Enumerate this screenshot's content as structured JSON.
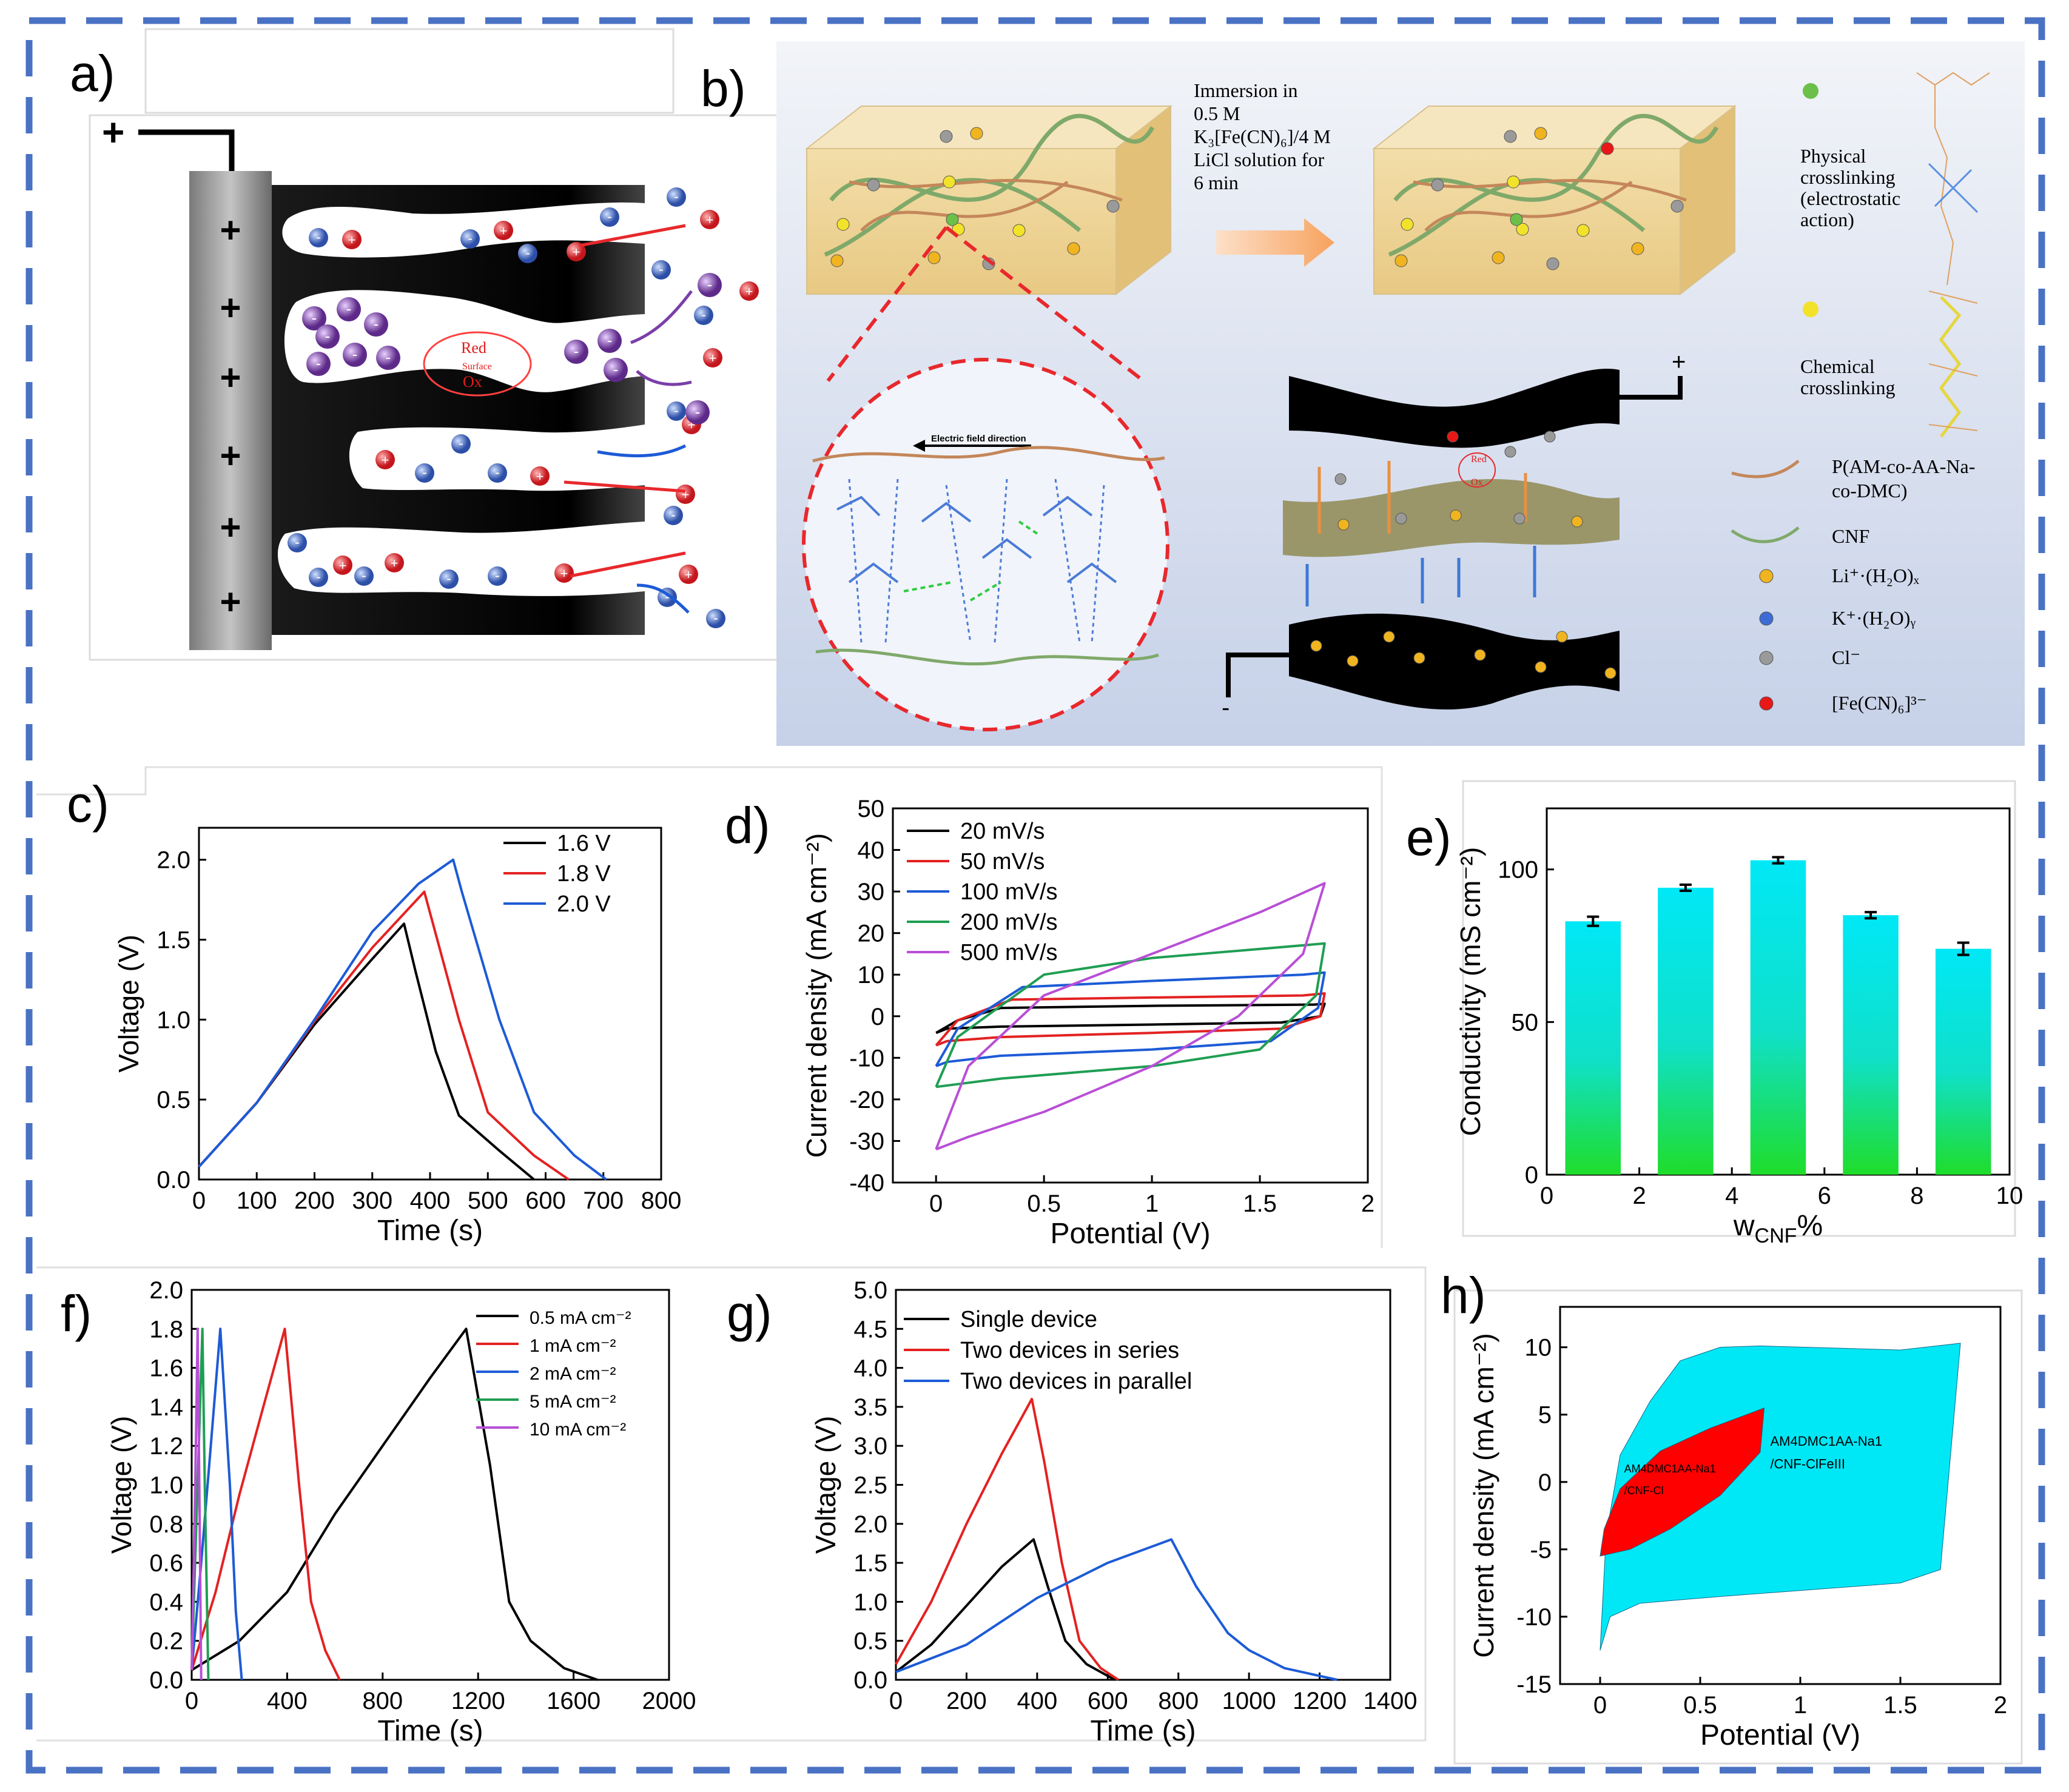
{
  "colors": {
    "frame": "#4a72c4",
    "ion_red": "#d8262c",
    "ion_blue": "#3d5fb5",
    "ion_purple": "#7b3fa8",
    "cyan": "#00e8f6",
    "green": "#1fdd2a"
  },
  "panels": {
    "a": {
      "label": "a)",
      "electrode_signs": [
        "+",
        "+",
        "+",
        "+",
        "+",
        "+"
      ],
      "terminal": "+",
      "cycle_text": [
        "Red",
        "Surface",
        "Ox"
      ]
    },
    "b": {
      "label": "b)",
      "immersion": [
        "Immersion in",
        "0.5 M",
        "K₃[Fe(CN)₆]/4 M",
        "LiCl solution for",
        "6 min"
      ],
      "field_label": "Electric field direction",
      "device_plus": "+",
      "device_minus": "-",
      "device_redox": [
        "Red",
        "Ox"
      ],
      "legend": {
        "physical": [
          "Physical",
          "crosslinking",
          "(electrostatic",
          "action)"
        ],
        "chemical": [
          "Chemical",
          "crosslinking"
        ],
        "polymer": [
          "P(AM-co-AA-Na-",
          "co-DMC)"
        ],
        "cnf": "CNF",
        "li": "Li⁺·(H₂O)ₓ",
        "k": "K⁺·(H₂O)ᵧ",
        "cl": "Cl⁻",
        "fe": "[Fe(CN)₆]³⁻"
      }
    }
  },
  "chart_data": [
    {
      "id": "c",
      "panel_label": "c)",
      "type": "line",
      "xlabel": "Time (s)",
      "ylabel": "Voltage (V)",
      "xlim": [
        0,
        800
      ],
      "ylim": [
        0,
        2.2
      ],
      "xticks": [
        0,
        100,
        200,
        300,
        400,
        500,
        600,
        700,
        800
      ],
      "yticks": [
        0.0,
        0.5,
        1.0,
        1.5,
        2.0
      ],
      "series": [
        {
          "name": "1.6 V",
          "color": "#000000",
          "points": [
            [
              0,
              0.08
            ],
            [
              100,
              0.48
            ],
            [
              200,
              0.97
            ],
            [
              300,
              1.38
            ],
            [
              355,
              1.6
            ],
            [
              375,
              1.3
            ],
            [
              410,
              0.8
            ],
            [
              450,
              0.4
            ],
            [
              520,
              0.18
            ],
            [
              580,
              0
            ]
          ]
        },
        {
          "name": "1.8 V",
          "color": "#e32222",
          "points": [
            [
              0,
              0.08
            ],
            [
              100,
              0.48
            ],
            [
              200,
              0.99
            ],
            [
              300,
              1.45
            ],
            [
              390,
              1.8
            ],
            [
              405,
              1.6
            ],
            [
              450,
              1.0
            ],
            [
              500,
              0.42
            ],
            [
              580,
              0.15
            ],
            [
              640,
              0
            ]
          ]
        },
        {
          "name": "2.0 V",
          "color": "#1d5bd6",
          "points": [
            [
              0,
              0.08
            ],
            [
              100,
              0.48
            ],
            [
              200,
              1.0
            ],
            [
              300,
              1.55
            ],
            [
              380,
              1.85
            ],
            [
              440,
              2.0
            ],
            [
              455,
              1.8
            ],
            [
              520,
              1.0
            ],
            [
              580,
              0.42
            ],
            [
              650,
              0.15
            ],
            [
              705,
              0
            ]
          ]
        }
      ]
    },
    {
      "id": "d",
      "panel_label": "d)",
      "type": "line",
      "xlabel": "Potential (V)",
      "ylabel": "Current density (mA cm⁻²)",
      "xlim": [
        -0.2,
        2.0
      ],
      "ylim": [
        -40,
        50
      ],
      "xticks": [
        0.0,
        0.5,
        1.0,
        1.5,
        2.0
      ],
      "yticks": [
        -40,
        -30,
        -20,
        -10,
        0,
        10,
        20,
        30,
        40,
        50
      ],
      "series": [
        {
          "name": "20 mV/s",
          "color": "#000000",
          "points": [
            [
              0,
              -4
            ],
            [
              0.1,
              -1
            ],
            [
              0.3,
              2
            ],
            [
              1.0,
              2.5
            ],
            [
              1.75,
              2.8
            ],
            [
              1.8,
              3
            ],
            [
              1.78,
              0
            ],
            [
              1.6,
              -1.5
            ],
            [
              1.0,
              -2
            ],
            [
              0.3,
              -2.5
            ],
            [
              0.05,
              -3
            ],
            [
              0,
              -4
            ]
          ]
        },
        {
          "name": "50 mV/s",
          "color": "#e32222",
          "points": [
            [
              0,
              -7
            ],
            [
              0.1,
              -1
            ],
            [
              0.35,
              4
            ],
            [
              1.0,
              4.5
            ],
            [
              1.7,
              5
            ],
            [
              1.8,
              5.5
            ],
            [
              1.78,
              0
            ],
            [
              1.6,
              -3
            ],
            [
              1.0,
              -4
            ],
            [
              0.3,
              -5
            ],
            [
              0.05,
              -6
            ],
            [
              0,
              -7
            ]
          ]
        },
        {
          "name": "100 mV/s",
          "color": "#1d5bd6",
          "points": [
            [
              0,
              -12
            ],
            [
              0.1,
              -3
            ],
            [
              0.4,
              7
            ],
            [
              1.0,
              8.5
            ],
            [
              1.7,
              10
            ],
            [
              1.8,
              10.5
            ],
            [
              1.77,
              2
            ],
            [
              1.55,
              -6
            ],
            [
              1.0,
              -8
            ],
            [
              0.3,
              -9.5
            ],
            [
              0.05,
              -11
            ],
            [
              0,
              -12
            ]
          ]
        },
        {
          "name": "200 mV/s",
          "color": "#1f9e53",
          "points": [
            [
              0,
              -17
            ],
            [
              0.1,
              -5
            ],
            [
              0.5,
              10
            ],
            [
              1.0,
              14
            ],
            [
              1.8,
              17.5
            ],
            [
              1.76,
              5
            ],
            [
              1.5,
              -8
            ],
            [
              1.0,
              -12
            ],
            [
              0.3,
              -15
            ],
            [
              0,
              -17
            ]
          ]
        },
        {
          "name": "500 mV/s",
          "color": "#b84fd6",
          "points": [
            [
              0,
              -32
            ],
            [
              0.15,
              -12
            ],
            [
              0.5,
              5
            ],
            [
              1.0,
              15
            ],
            [
              1.5,
              25
            ],
            [
              1.8,
              32
            ],
            [
              1.7,
              15
            ],
            [
              1.4,
              0
            ],
            [
              1.0,
              -12
            ],
            [
              0.5,
              -23
            ],
            [
              0.15,
              -29
            ],
            [
              0,
              -32
            ]
          ]
        }
      ]
    },
    {
      "id": "e",
      "panel_label": "e)",
      "type": "bar",
      "xlabel": "w",
      "xlabel_sub": "CNF",
      "xlabel_suffix": "%",
      "ylabel": "Conductivity (mS cm⁻²)",
      "xlim": [
        0,
        10
      ],
      "ylim": [
        0,
        120
      ],
      "xticks": [
        0,
        2,
        4,
        6,
        8,
        10
      ],
      "yticks": [
        0,
        50,
        100
      ],
      "x": [
        1,
        3,
        5,
        7,
        9
      ],
      "values": [
        83,
        94,
        103,
        85,
        74
      ],
      "errors": [
        1.5,
        1,
        1,
        1,
        2
      ]
    },
    {
      "id": "f",
      "panel_label": "f)",
      "type": "line",
      "xlabel": "Time (s)",
      "ylabel": "Voltage (V)",
      "xlim": [
        0,
        2000
      ],
      "ylim": [
        0,
        2.0
      ],
      "xticks": [
        0,
        400,
        800,
        1200,
        1600,
        2000
      ],
      "yticks": [
        0.0,
        0.2,
        0.4,
        0.6,
        0.8,
        1.0,
        1.2,
        1.4,
        1.6,
        1.8,
        2.0
      ],
      "series": [
        {
          "name": "0.5 mA cm⁻²",
          "color": "#000000",
          "points": [
            [
              0,
              0.05
            ],
            [
              200,
              0.2
            ],
            [
              400,
              0.45
            ],
            [
              600,
              0.85
            ],
            [
              800,
              1.2
            ],
            [
              1000,
              1.55
            ],
            [
              1150,
              1.8
            ],
            [
              1250,
              1.1
            ],
            [
              1330,
              0.4
            ],
            [
              1420,
              0.2
            ],
            [
              1560,
              0.06
            ],
            [
              1700,
              0
            ]
          ]
        },
        {
          "name": "1 mA cm⁻²",
          "color": "#e32222",
          "points": [
            [
              0,
              0.05
            ],
            [
              100,
              0.45
            ],
            [
              200,
              0.95
            ],
            [
              300,
              1.4
            ],
            [
              390,
              1.8
            ],
            [
              450,
              1.0
            ],
            [
              500,
              0.4
            ],
            [
              560,
              0.15
            ],
            [
              620,
              0
            ]
          ]
        },
        {
          "name": "2 mA cm⁻²",
          "color": "#1d5bd6",
          "points": [
            [
              0,
              0.05
            ],
            [
              40,
              0.6
            ],
            [
              80,
              1.2
            ],
            [
              120,
              1.8
            ],
            [
              160,
              1.0
            ],
            [
              185,
              0.35
            ],
            [
              210,
              0
            ]
          ]
        },
        {
          "name": "5 mA cm⁻²",
          "color": "#1f9e53",
          "points": [
            [
              0,
              0.05
            ],
            [
              25,
              1.0
            ],
            [
              45,
              1.8
            ],
            [
              55,
              1.0
            ],
            [
              70,
              0
            ]
          ]
        },
        {
          "name": "10 mA cm⁻²",
          "color": "#b84fd6",
          "points": [
            [
              0,
              0.05
            ],
            [
              15,
              1.0
            ],
            [
              25,
              1.8
            ],
            [
              32,
              1.0
            ],
            [
              40,
              0
            ]
          ]
        }
      ]
    },
    {
      "id": "g",
      "panel_label": "g)",
      "type": "line",
      "xlabel": "Time (s)",
      "ylabel": "Voltage (V)",
      "xlim": [
        0,
        1400
      ],
      "ylim": [
        0,
        5.0
      ],
      "xticks": [
        0,
        200,
        400,
        600,
        800,
        1000,
        1200,
        1400
      ],
      "yticks": [
        0.0,
        0.5,
        1.0,
        1.5,
        2.0,
        2.5,
        3.0,
        3.5,
        4.0,
        4.5,
        5.0
      ],
      "series": [
        {
          "name": "Single device",
          "color": "#000000",
          "points": [
            [
              0,
              0.1
            ],
            [
              100,
              0.45
            ],
            [
              200,
              0.95
            ],
            [
              300,
              1.45
            ],
            [
              390,
              1.8
            ],
            [
              430,
              1.2
            ],
            [
              480,
              0.5
            ],
            [
              540,
              0.2
            ],
            [
              620,
              0
            ]
          ]
        },
        {
          "name": "Two devices in series",
          "color": "#e32222",
          "points": [
            [
              0,
              0.2
            ],
            [
              100,
              1.0
            ],
            [
              200,
              2.0
            ],
            [
              300,
              2.9
            ],
            [
              385,
              3.6
            ],
            [
              420,
              2.8
            ],
            [
              470,
              1.5
            ],
            [
              520,
              0.5
            ],
            [
              580,
              0.15
            ],
            [
              630,
              0
            ]
          ]
        },
        {
          "name": "Two devices in parallel",
          "color": "#1d5bd6",
          "points": [
            [
              0,
              0.1
            ],
            [
              200,
              0.45
            ],
            [
              400,
              1.05
            ],
            [
              600,
              1.5
            ],
            [
              780,
              1.8
            ],
            [
              850,
              1.2
            ],
            [
              940,
              0.6
            ],
            [
              1000,
              0.38
            ],
            [
              1100,
              0.15
            ],
            [
              1250,
              0
            ]
          ]
        }
      ]
    },
    {
      "id": "h",
      "panel_label": "h)",
      "type": "area",
      "xlabel": "Potential (V)",
      "ylabel": "Current density (mA cm⁻²)",
      "xlim": [
        -0.2,
        2.0
      ],
      "ylim": [
        -15,
        13
      ],
      "xticks": [
        0.0,
        0.5,
        1.0,
        1.5,
        2.0
      ],
      "yticks": [
        -15,
        -10,
        -5,
        0,
        5,
        10
      ],
      "series": [
        {
          "name": "AM4DMC1AA-Na1 /CNF-ClFeIII",
          "color": "#00e8f6",
          "points": [
            [
              0,
              -12.5
            ],
            [
              0.05,
              -10
            ],
            [
              0.2,
              -9
            ],
            [
              0.6,
              -8.5
            ],
            [
              1.5,
              -7.5
            ],
            [
              1.7,
              -6.5
            ],
            [
              1.8,
              10.3
            ],
            [
              1.5,
              9.8
            ],
            [
              0.8,
              10.1
            ],
            [
              0.6,
              10
            ],
            [
              0.4,
              9
            ],
            [
              0.25,
              6
            ],
            [
              0.1,
              2
            ],
            [
              0.03,
              -4
            ],
            [
              0,
              -12.5
            ]
          ]
        },
        {
          "name": "AM4DMC1AA-Na1 /CNF-Cl",
          "color": "#ff0000",
          "points": [
            [
              0,
              -5.5
            ],
            [
              0.15,
              -5
            ],
            [
              0.35,
              -3.5
            ],
            [
              0.6,
              -1
            ],
            [
              0.8,
              2.2
            ],
            [
              0.82,
              5.5
            ],
            [
              0.55,
              4
            ],
            [
              0.3,
              2.3
            ],
            [
              0.1,
              -0.5
            ],
            [
              0.02,
              -3.5
            ],
            [
              0,
              -5.5
            ]
          ]
        }
      ]
    }
  ]
}
